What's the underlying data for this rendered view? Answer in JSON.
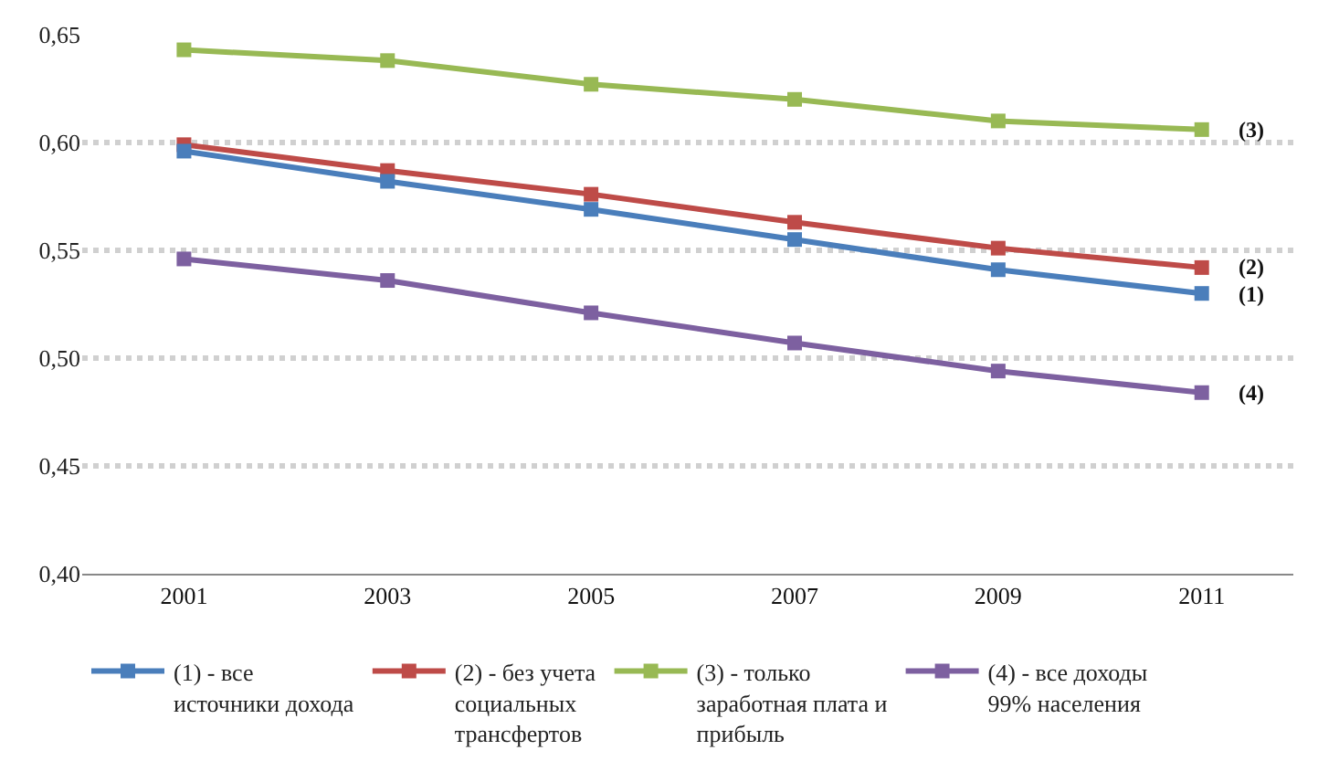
{
  "chart_data": {
    "type": "line",
    "categories": [
      "2001",
      "2003",
      "2005",
      "2007",
      "2009",
      "2011"
    ],
    "series": [
      {
        "name": "(1) - все источники дохода",
        "color": "#4a7ebb",
        "values": [
          0.596,
          0.582,
          0.569,
          0.555,
          0.541,
          0.53
        ]
      },
      {
        "name": "(2) - без учета социальных трансфертов",
        "color": "#be4b48",
        "values": [
          0.599,
          0.587,
          0.576,
          0.563,
          0.551,
          0.542
        ]
      },
      {
        "name": "(3) - только заработная плата и прибыль",
        "color": "#98b954",
        "values": [
          0.643,
          0.638,
          0.627,
          0.62,
          0.61,
          0.606
        ]
      },
      {
        "name": "(4) - все доходы 99% населения",
        "color": "#7d60a0",
        "values": [
          0.546,
          0.536,
          0.521,
          0.507,
          0.494,
          0.484
        ]
      }
    ],
    "ylim": [
      0.4,
      0.65
    ],
    "yticks": [
      {
        "value": 0.4,
        "label": "0,40"
      },
      {
        "value": 0.45,
        "label": "0,45"
      },
      {
        "value": 0.5,
        "label": "0,50"
      },
      {
        "value": 0.55,
        "label": "0,55"
      },
      {
        "value": 0.6,
        "label": "0,60"
      },
      {
        "value": 0.65,
        "label": "0,65"
      }
    ],
    "annotations": [
      {
        "text": "(1)",
        "x": "2011",
        "y": 0.53
      },
      {
        "text": "(2)",
        "x": "2011",
        "y": 0.542
      },
      {
        "text": "(3)",
        "x": "2011",
        "y": 0.606
      },
      {
        "text": "(4)",
        "x": "2011",
        "y": 0.484
      }
    ],
    "grid": "y",
    "legend": "bottom",
    "marker": "square",
    "line_style": "solid"
  }
}
